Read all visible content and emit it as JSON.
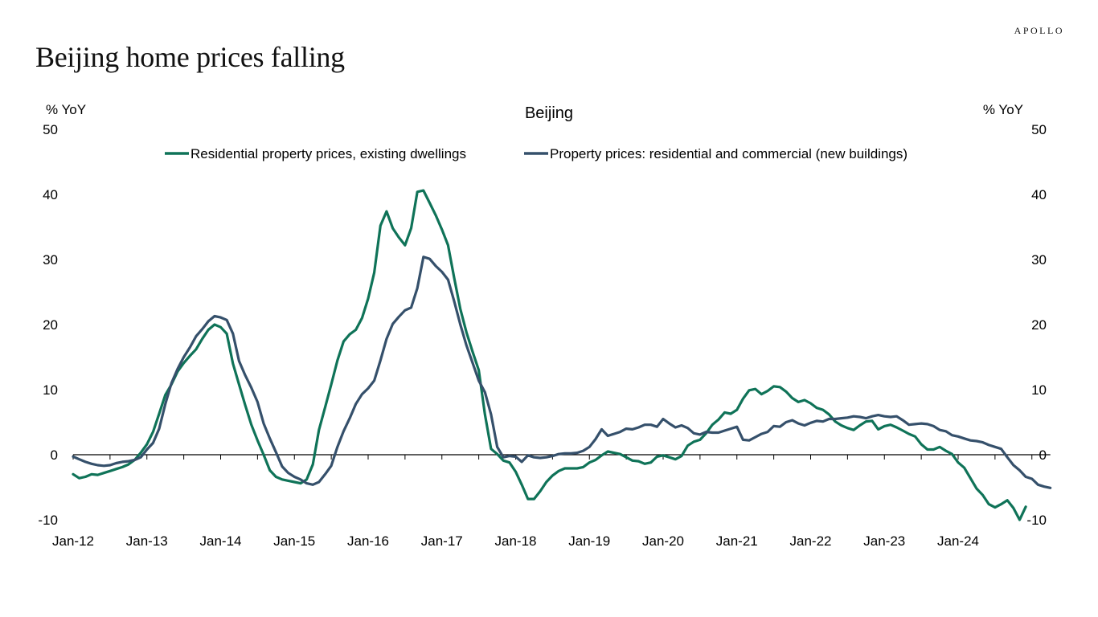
{
  "header": {
    "title": "Beijing home prices falling",
    "brand": "APOLLO"
  },
  "chart_data": {
    "type": "line",
    "title": "Beijing",
    "ylabel_left": "% YoY",
    "ylabel_right": "% YoY",
    "ylim": [
      -10,
      50
    ],
    "yticks": [
      -10,
      0,
      10,
      20,
      30,
      40,
      50
    ],
    "x_start": "Jan-12",
    "x_frequency": "monthly",
    "xtick_labels": [
      "Jan-12",
      "Jan-13",
      "Jan-14",
      "Jan-15",
      "Jan-16",
      "Jan-17",
      "Jan-18",
      "Jan-19",
      "Jan-20",
      "Jan-21",
      "Jan-22",
      "Jan-23",
      "Jan-24"
    ],
    "zero_line": true,
    "grid": false,
    "legend_position": "top",
    "series": [
      {
        "name": "Residential property prices, existing dwellings",
        "color": "#0f7358",
        "values": [
          -3.0,
          -3.6,
          -3.4,
          -3.0,
          -3.1,
          -2.8,
          -2.5,
          -2.2,
          -1.9,
          -1.5,
          -0.8,
          0.3,
          1.6,
          3.5,
          6.3,
          9.2,
          10.8,
          12.8,
          14.1,
          15.2,
          16.2,
          17.8,
          19.2,
          20.0,
          19.6,
          18.6,
          14.0,
          10.8,
          7.6,
          4.6,
          2.2,
          0.0,
          -2.4,
          -3.4,
          -3.8,
          -4.0,
          -4.2,
          -4.4,
          -3.8,
          -1.5,
          3.8,
          7.3,
          10.8,
          14.5,
          17.4,
          18.5,
          19.2,
          21.0,
          24.0,
          28.0,
          35.2,
          37.4,
          34.8,
          33.4,
          32.2,
          34.8,
          40.4,
          40.6,
          38.7,
          36.8,
          34.6,
          32.2,
          27.2,
          22.4,
          18.8,
          15.8,
          13.0,
          6.2,
          0.9,
          0.1,
          -0.9,
          -1.2,
          -2.6,
          -4.6,
          -6.8,
          -6.8,
          -5.6,
          -4.2,
          -3.2,
          -2.5,
          -2.1,
          -2.1,
          -2.1,
          -1.9,
          -1.2,
          -0.8,
          -0.1,
          0.5,
          0.3,
          0.1,
          -0.4,
          -0.9,
          -1.0,
          -1.4,
          -1.2,
          -0.3,
          -0.1,
          -0.4,
          -0.7,
          -0.2,
          1.4,
          2.0,
          2.3,
          3.3,
          4.6,
          5.4,
          6.5,
          6.3,
          6.9,
          8.6,
          9.9,
          10.1,
          9.3,
          9.8,
          10.5,
          10.4,
          9.7,
          8.7,
          8.1,
          8.4,
          7.9,
          7.2,
          6.9,
          6.2,
          5.1,
          4.5,
          4.1,
          3.8,
          4.5,
          5.1,
          5.2,
          3.9,
          4.4,
          4.6,
          4.2,
          3.7,
          3.2,
          2.8,
          1.6,
          0.8,
          0.8,
          1.2,
          0.6,
          0.1,
          -1.2,
          -2.0,
          -3.6,
          -5.2,
          -6.2,
          -7.6,
          -8.1,
          -7.6,
          -7.0,
          -8.2,
          -10.0,
          -8.0
        ]
      },
      {
        "name": "Property prices: residential and commercial (new buildings)",
        "color": "#35506b",
        "values": [
          -0.3,
          -0.7,
          -1.1,
          -1.4,
          -1.6,
          -1.7,
          -1.6,
          -1.3,
          -1.1,
          -1.0,
          -0.8,
          -0.4,
          0.8,
          1.8,
          4.0,
          7.8,
          11.0,
          13.2,
          15.0,
          16.5,
          18.2,
          19.3,
          20.5,
          21.3,
          21.1,
          20.7,
          18.6,
          14.4,
          12.2,
          10.3,
          8.1,
          4.8,
          2.5,
          0.4,
          -1.8,
          -2.8,
          -3.4,
          -3.8,
          -4.4,
          -4.6,
          -4.2,
          -3.0,
          -1.7,
          1.2,
          3.6,
          5.6,
          7.8,
          9.3,
          10.2,
          11.4,
          14.5,
          17.8,
          20.1,
          21.2,
          22.2,
          22.6,
          25.6,
          30.4,
          30.1,
          29.0,
          28.1,
          26.9,
          23.6,
          20.0,
          16.8,
          14.1,
          11.4,
          9.6,
          6.2,
          1.2,
          -0.4,
          -0.2,
          -0.3,
          -1.1,
          -0.1,
          -0.4,
          -0.5,
          -0.4,
          -0.2,
          0.1,
          0.2,
          0.2,
          0.3,
          0.6,
          1.2,
          2.4,
          3.9,
          2.9,
          3.2,
          3.5,
          4.0,
          3.9,
          4.2,
          4.6,
          4.6,
          4.3,
          5.5,
          4.8,
          4.2,
          4.5,
          4.1,
          3.3,
          3.1,
          3.5,
          3.4,
          3.4,
          3.7,
          4.0,
          4.3,
          2.3,
          2.2,
          2.7,
          3.2,
          3.5,
          4.4,
          4.3,
          5.0,
          5.3,
          4.8,
          4.5,
          4.9,
          5.2,
          5.1,
          5.5,
          5.5,
          5.6,
          5.7,
          5.9,
          5.8,
          5.6,
          5.9,
          6.1,
          5.9,
          5.8,
          5.9,
          5.3,
          4.6,
          4.7,
          4.8,
          4.7,
          4.4,
          3.8,
          3.6,
          3.0,
          2.8,
          2.5,
          2.2,
          2.1,
          1.9,
          1.5,
          1.2,
          0.9,
          -0.4,
          -1.6,
          -2.4,
          -3.4,
          -3.7,
          -4.6,
          -4.9,
          -5.1
        ]
      }
    ]
  }
}
